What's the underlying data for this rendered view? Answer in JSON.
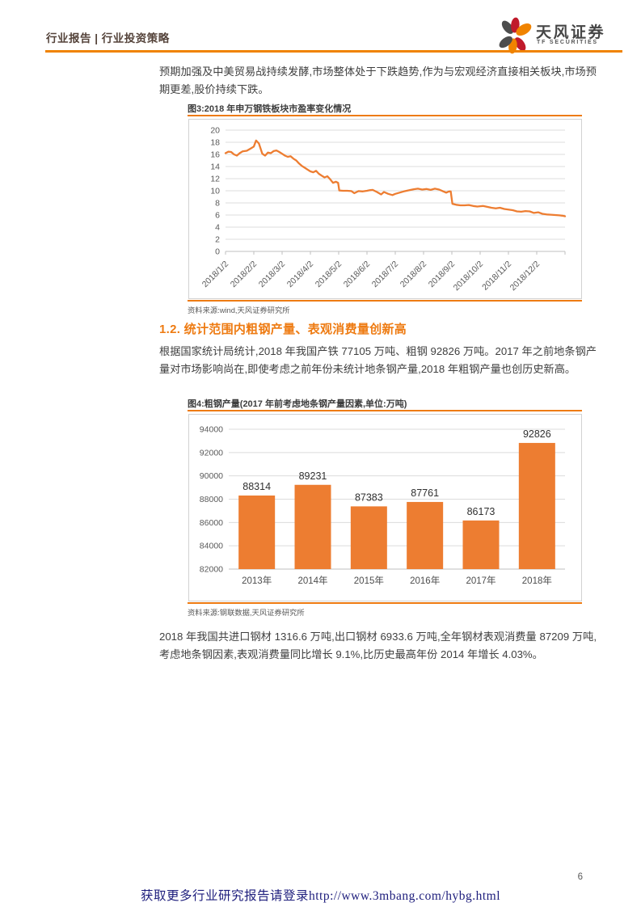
{
  "header": {
    "left_label": "行业报告 | 行业投资策略",
    "brand_name": "天风证券",
    "brand_sub": "TF SECURITIES"
  },
  "colors": {
    "accent_orange": "#ED7D31",
    "rule_orange": "#EE7B12",
    "header_rule": "#F08300",
    "gridline": "#DCDCDC",
    "axis": "#BFBFBF",
    "axis_label": "#595959",
    "body_text": "#3F3F3F",
    "heading_orange": "#EE7B12",
    "footer_link": "#1D1D7C"
  },
  "paragraphs": {
    "p1": "预期加强及中美贸易战持续发酵,市场整体处于下跌趋势,作为与宏观经济直接相关板块,市场预期更差,股价持续下跌。",
    "p2": "根据国家统计局统计,2018 年我国产铁 77105 万吨、粗钢 92826 万吨。2017 年之前地条钢产量对市场影响尚在,即使考虑之前年份未统计地条钢产量,2018 年粗钢产量也创历史新高。",
    "p3": "2018 年我国共进口钢材 1316.6 万吨,出口钢材 6933.6 万吨,全年钢材表观消费量 87209 万吨,考虑地条钢因素,表观消费量同比增长 9.1%,比历史最高年份 2014 年增长 4.03%。"
  },
  "section": {
    "heading": "1.2. 统计范围内粗钢产量、表观消费量创新高"
  },
  "figure3": {
    "caption": "图3:2018 年申万钢铁板块市盈率变化情况",
    "source": "资料来源:wind,天风证券研究所"
  },
  "figure4": {
    "caption": "图4:粗钢产量(2017 年前考虑地条钢产量因素,单位:万吨)",
    "source": "资料来源:钢联数据,天风证券研究所"
  },
  "footer": {
    "page_number": "6",
    "promo": "获取更多行业研究报告请登录http://www.3mbang.com/hybg.html"
  },
  "chart_data": [
    {
      "id": "figure3",
      "type": "line",
      "title": "2018年申万钢铁板块市盈率变化情况",
      "ylim": [
        0,
        20
      ],
      "y_tick_step": 2,
      "x_tick_labels": [
        "2018/1/2",
        "2018/2/2",
        "2018/3/2",
        "2018/4/2",
        "2018/5/2",
        "2018/6/2",
        "2018/7/2",
        "2018/8/2",
        "2018/9/2",
        "2018/10/2",
        "2018/11/2",
        "2018/12/2"
      ],
      "x_months_range": [
        0,
        12
      ],
      "grid": true,
      "legend_position": "none",
      "series": [
        {
          "name": "申万钢铁板块市盈率",
          "color": "#ED7D31",
          "points": [
            [
              0,
              16.2
            ],
            [
              0.1,
              16.45
            ],
            [
              0.2,
              16.4
            ],
            [
              0.3,
              16.0
            ],
            [
              0.4,
              15.8
            ],
            [
              0.5,
              16.2
            ],
            [
              0.6,
              16.5
            ],
            [
              0.75,
              16.6
            ],
            [
              0.9,
              17.0
            ],
            [
              1.0,
              17.3
            ],
            [
              1.08,
              18.3
            ],
            [
              1.18,
              17.8
            ],
            [
              1.3,
              16.1
            ],
            [
              1.4,
              15.8
            ],
            [
              1.5,
              16.3
            ],
            [
              1.6,
              16.2
            ],
            [
              1.7,
              16.55
            ],
            [
              1.8,
              16.65
            ],
            [
              1.9,
              16.4
            ],
            [
              2.0,
              16.1
            ],
            [
              2.1,
              15.8
            ],
            [
              2.2,
              15.6
            ],
            [
              2.3,
              15.7
            ],
            [
              2.4,
              15.3
            ],
            [
              2.5,
              15.0
            ],
            [
              2.6,
              14.5
            ],
            [
              2.7,
              14.1
            ],
            [
              2.8,
              13.8
            ],
            [
              2.9,
              13.5
            ],
            [
              3.0,
              13.2
            ],
            [
              3.1,
              13.05
            ],
            [
              3.2,
              13.3
            ],
            [
              3.3,
              12.8
            ],
            [
              3.4,
              12.5
            ],
            [
              3.5,
              12.2
            ],
            [
              3.6,
              12.4
            ],
            [
              3.7,
              11.9
            ],
            [
              3.8,
              11.3
            ],
            [
              3.9,
              11.5
            ],
            [
              3.98,
              11.3
            ],
            [
              4.02,
              10.05
            ],
            [
              4.15,
              10.0
            ],
            [
              4.3,
              10.0
            ],
            [
              4.45,
              9.95
            ],
            [
              4.55,
              9.6
            ],
            [
              4.7,
              9.95
            ],
            [
              4.85,
              9.9
            ],
            [
              5.0,
              10.0
            ],
            [
              5.1,
              10.1
            ],
            [
              5.2,
              10.15
            ],
            [
              5.35,
              9.8
            ],
            [
              5.5,
              9.4
            ],
            [
              5.6,
              9.8
            ],
            [
              5.75,
              9.5
            ],
            [
              5.9,
              9.3
            ],
            [
              6.0,
              9.5
            ],
            [
              6.15,
              9.7
            ],
            [
              6.3,
              9.9
            ],
            [
              6.5,
              10.1
            ],
            [
              6.65,
              10.25
            ],
            [
              6.8,
              10.35
            ],
            [
              6.95,
              10.2
            ],
            [
              7.1,
              10.3
            ],
            [
              7.25,
              10.15
            ],
            [
              7.4,
              10.35
            ],
            [
              7.55,
              10.2
            ],
            [
              7.7,
              9.9
            ],
            [
              7.8,
              9.7
            ],
            [
              7.9,
              9.9
            ],
            [
              7.96,
              9.9
            ],
            [
              8.02,
              7.85
            ],
            [
              8.15,
              7.7
            ],
            [
              8.3,
              7.6
            ],
            [
              8.45,
              7.6
            ],
            [
              8.6,
              7.65
            ],
            [
              8.75,
              7.5
            ],
            [
              8.9,
              7.4
            ],
            [
              9.0,
              7.45
            ],
            [
              9.1,
              7.5
            ],
            [
              9.25,
              7.35
            ],
            [
              9.4,
              7.2
            ],
            [
              9.55,
              7.1
            ],
            [
              9.7,
              7.2
            ],
            [
              9.85,
              7.0
            ],
            [
              10.0,
              6.9
            ],
            [
              10.15,
              6.8
            ],
            [
              10.3,
              6.6
            ],
            [
              10.45,
              6.55
            ],
            [
              10.6,
              6.65
            ],
            [
              10.75,
              6.6
            ],
            [
              10.9,
              6.35
            ],
            [
              11.05,
              6.45
            ],
            [
              11.2,
              6.2
            ],
            [
              11.35,
              6.1
            ],
            [
              11.5,
              6.05
            ],
            [
              11.65,
              6.0
            ],
            [
              11.8,
              5.95
            ],
            [
              11.9,
              5.9
            ],
            [
              12.0,
              5.8
            ]
          ]
        }
      ]
    },
    {
      "id": "figure4",
      "type": "bar",
      "title": "粗钢产量(2017年前考虑地条钢产量因素,单位:万吨)",
      "categories": [
        "2013年",
        "2014年",
        "2015年",
        "2016年",
        "2017年",
        "2018年"
      ],
      "values": [
        88314,
        89231,
        87383,
        87761,
        86173,
        92826
      ],
      "ylim": [
        82000,
        94000
      ],
      "y_tick_step": 2000,
      "bar_color": "#ED7D31",
      "grid": true,
      "legend_position": "none"
    }
  ]
}
